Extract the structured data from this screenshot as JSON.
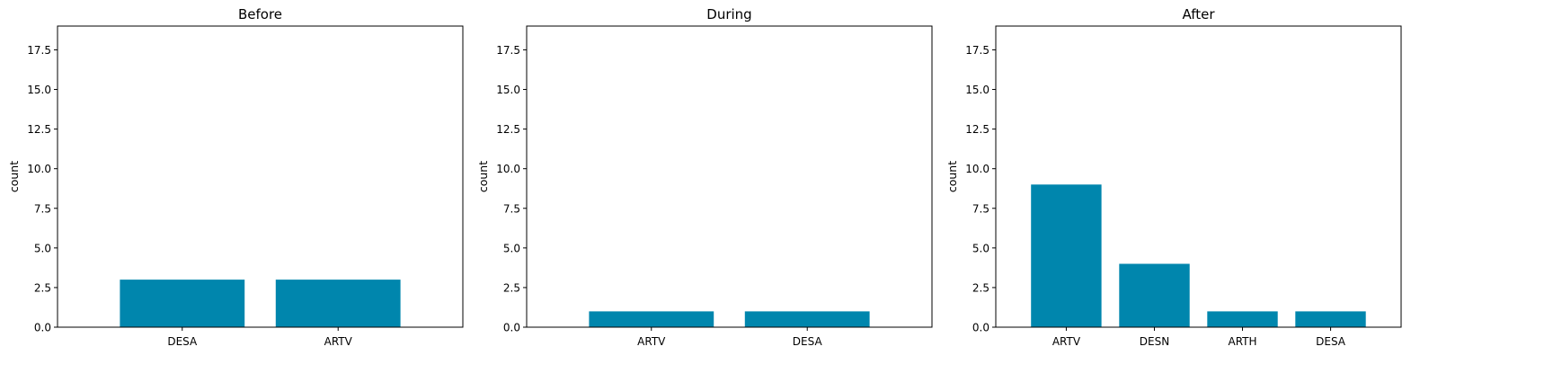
{
  "chart_data": [
    {
      "type": "bar",
      "title": "Before",
      "xlabel": "",
      "ylabel": "count",
      "ylim": [
        0,
        19
      ],
      "yticks": [
        "0.0",
        "2.5",
        "5.0",
        "7.5",
        "10.0",
        "12.5",
        "15.0",
        "17.5"
      ],
      "categories": [
        "DESA",
        "ARTV"
      ],
      "values": [
        3,
        3
      ],
      "bar_color": "#0086ad",
      "grid": false
    },
    {
      "type": "bar",
      "title": "During",
      "xlabel": "",
      "ylabel": "count",
      "ylim": [
        0,
        19
      ],
      "yticks": [
        "0.0",
        "2.5",
        "5.0",
        "7.5",
        "10.0",
        "12.5",
        "15.0",
        "17.5"
      ],
      "categories": [
        "ARTV",
        "DESA"
      ],
      "values": [
        1,
        1
      ],
      "bar_color": "#0086ad",
      "grid": false
    },
    {
      "type": "bar",
      "title": "After",
      "xlabel": "",
      "ylabel": "count",
      "ylim": [
        0,
        19
      ],
      "yticks": [
        "0.0",
        "2.5",
        "5.0",
        "7.5",
        "10.0",
        "12.5",
        "15.0",
        "17.5"
      ],
      "categories": [
        "ARTV",
        "DESN",
        "ARTH",
        "DESA"
      ],
      "values": [
        9,
        4,
        1,
        1
      ],
      "bar_color": "#0086ad",
      "grid": false
    }
  ]
}
